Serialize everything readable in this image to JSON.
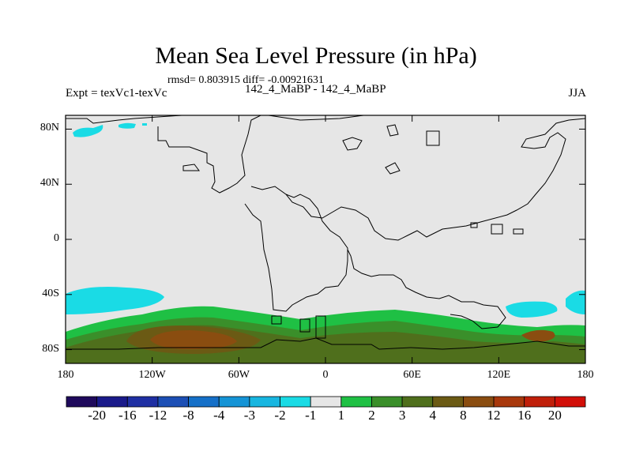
{
  "chart_data": {
    "type": "heatmap",
    "title": "Mean Sea Level Pressure (in hPa)",
    "stats": "rmsd= 0.803915  diff= -0.00921631",
    "experiment": "Expt = texVc1-texVc",
    "period": "142_4_MaBP - 142_4_MaBP",
    "season": "JJA",
    "x_ticks": [
      "180",
      "120W",
      "60W",
      "0",
      "60E",
      "120E",
      "180"
    ],
    "y_ticks": [
      "80N",
      "40N",
      "0",
      "40S",
      "80S"
    ],
    "xlim": [
      -180,
      180
    ],
    "ylim": [
      -90,
      90
    ],
    "colorbar": {
      "colors": [
        "#1f0a5c",
        "#1a1a8a",
        "#1f2fa3",
        "#1c4fb5",
        "#1570c8",
        "#1594d6",
        "#18b6e0",
        "#1adbe5",
        "#e6e6e6",
        "#1fc044",
        "#3a8f2a",
        "#4f6f1c",
        "#6b5a14",
        "#8a4d10",
        "#a8380c",
        "#c01f0a",
        "#d20f08"
      ],
      "labels": [
        "-20",
        "-16",
        "-12",
        "-8",
        "-4",
        "-3",
        "-2",
        "-1",
        "1",
        "2",
        "3",
        "4",
        "8",
        "12",
        "16",
        "20"
      ]
    },
    "features": [
      {
        "name": "arctic-negative-anomaly",
        "level": -2,
        "lon_range": [
          -180,
          -130
        ],
        "lat_center": 72
      },
      {
        "name": "south-pacific-negative-anomaly",
        "level": -2,
        "lon_range": [
          -180,
          -115
        ],
        "lat_center": -48
      },
      {
        "name": "south-indian-negative-anomaly",
        "level": -2,
        "lon_range": [
          130,
          180
        ],
        "lat_center": -52
      },
      {
        "name": "southern-ocean-positive-band",
        "level": 2,
        "lon_range": [
          -180,
          180
        ],
        "lat_range": [
          -90,
          -58
        ]
      },
      {
        "name": "antarctic-positive-core",
        "level": 8,
        "lon_range": [
          -130,
          -40
        ],
        "lat_center": -75
      }
    ]
  }
}
